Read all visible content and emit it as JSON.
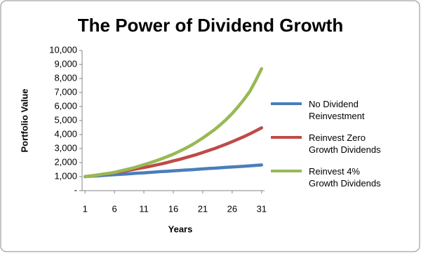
{
  "chart_data": {
    "type": "line",
    "title": "The Power of Dividend Growth",
    "x_label": "Years",
    "y_label": "Portfolio Value",
    "x": [
      1,
      2,
      3,
      4,
      5,
      6,
      7,
      8,
      9,
      10,
      11,
      12,
      13,
      14,
      15,
      16,
      17,
      18,
      19,
      20,
      21,
      22,
      23,
      24,
      25,
      26,
      27,
      28,
      29,
      30,
      31
    ],
    "xlim": [
      0.5,
      31.5
    ],
    "xticks": [
      1,
      6,
      11,
      16,
      21,
      26,
      31
    ],
    "ylim": [
      0,
      10000
    ],
    "yticks": [
      {
        "value": 0,
        "label": "-"
      },
      {
        "value": 1000,
        "label": "1,000"
      },
      {
        "value": 2000,
        "label": "2,000"
      },
      {
        "value": 3000,
        "label": "3,000"
      },
      {
        "value": 4000,
        "label": "4,000"
      },
      {
        "value": 5000,
        "label": "5,000"
      },
      {
        "value": 6000,
        "label": "6,000"
      },
      {
        "value": 7000,
        "label": "7,000"
      },
      {
        "value": 8000,
        "label": "8,000"
      },
      {
        "value": 9000,
        "label": "9,000"
      },
      {
        "value": 10000,
        "label": "10,000"
      }
    ],
    "grid": false,
    "legend": "right",
    "series": [
      {
        "name": "No Dividend Reinvestment",
        "color": "#4a7ebb",
        "values": [
          1000,
          1030,
          1050,
          1080,
          1110,
          1140,
          1160,
          1190,
          1220,
          1250,
          1270,
          1300,
          1330,
          1360,
          1380,
          1410,
          1440,
          1470,
          1490,
          1520,
          1550,
          1580,
          1600,
          1630,
          1660,
          1690,
          1710,
          1740,
          1770,
          1800,
          1830
        ]
      },
      {
        "name": "Reinvest Zero Growth Dividends",
        "color": "#be4b48",
        "values": [
          1000,
          1050,
          1110,
          1160,
          1220,
          1280,
          1350,
          1420,
          1490,
          1570,
          1650,
          1730,
          1820,
          1910,
          2010,
          2120,
          2220,
          2340,
          2460,
          2580,
          2720,
          2860,
          3000,
          3160,
          3320,
          3490,
          3670,
          3850,
          4050,
          4260,
          4480
        ]
      },
      {
        "name": "Reinvest 4% Growth Dividends",
        "color": "#98b954",
        "values": [
          1000,
          1050,
          1100,
          1180,
          1230,
          1300,
          1400,
          1500,
          1600,
          1720,
          1850,
          1980,
          2120,
          2270,
          2430,
          2600,
          2800,
          3000,
          3230,
          3480,
          3750,
          4050,
          4350,
          4700,
          5080,
          5500,
          5980,
          6500,
          7080,
          7850,
          8700
        ]
      }
    ]
  }
}
